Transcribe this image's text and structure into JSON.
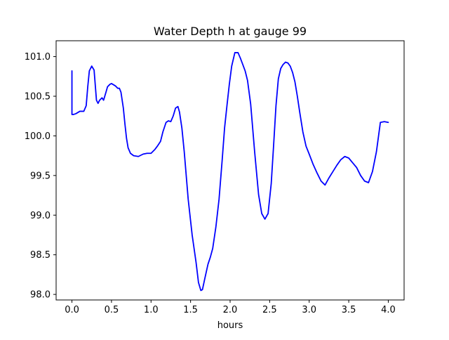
{
  "chart_data": {
    "type": "line",
    "title": "Water Depth h at gauge 99",
    "xlabel": "hours",
    "ylabel": "",
    "xlim": [
      -0.2,
      4.2
    ],
    "ylim": [
      97.93,
      101.2
    ],
    "xticks": [
      0.0,
      0.5,
      1.0,
      1.5,
      2.0,
      2.5,
      3.0,
      3.5,
      4.0
    ],
    "xtick_labels": [
      "0.0",
      "0.5",
      "1.0",
      "1.5",
      "2.0",
      "2.5",
      "3.0",
      "3.5",
      "4.0"
    ],
    "yticks": [
      98.0,
      98.5,
      99.0,
      99.5,
      100.0,
      100.5,
      101.0
    ],
    "ytick_labels": [
      "98.0",
      "98.5",
      "99.0",
      "99.5",
      "100.0",
      "100.5",
      "101.0"
    ],
    "grid": false,
    "series": [
      {
        "color": "#0000ff",
        "x": [
          0.0,
          0.0,
          0.02,
          0.05,
          0.1,
          0.15,
          0.18,
          0.2,
          0.22,
          0.25,
          0.28,
          0.31,
          0.33,
          0.35,
          0.38,
          0.4,
          0.43,
          0.45,
          0.48,
          0.5,
          0.55,
          0.58,
          0.6,
          0.62,
          0.65,
          0.67,
          0.69,
          0.71,
          0.74,
          0.78,
          0.84,
          0.9,
          0.95,
          1.0,
          1.05,
          1.08,
          1.12,
          1.15,
          1.19,
          1.22,
          1.25,
          1.28,
          1.31,
          1.34,
          1.36,
          1.39,
          1.42,
          1.47,
          1.52,
          1.57,
          1.6,
          1.63,
          1.65,
          1.68,
          1.72,
          1.75,
          1.78,
          1.82,
          1.86,
          1.9,
          1.93,
          1.96,
          1.99,
          2.02,
          2.06,
          2.1,
          2.13,
          2.16,
          2.19,
          2.22,
          2.26,
          2.31,
          2.36,
          2.4,
          2.44,
          2.48,
          2.52,
          2.55,
          2.58,
          2.61,
          2.64,
          2.67,
          2.7,
          2.73,
          2.76,
          2.79,
          2.82,
          2.85,
          2.88,
          2.92,
          2.96,
          3.0,
          3.05,
          3.1,
          3.15,
          3.2,
          3.25,
          3.3,
          3.35,
          3.4,
          3.45,
          3.5,
          3.55,
          3.6,
          3.65,
          3.7,
          3.75,
          3.8,
          3.85,
          3.9,
          3.95,
          4.0
        ],
        "values": [
          100.82,
          100.27,
          100.27,
          100.28,
          100.31,
          100.31,
          100.38,
          100.62,
          100.82,
          100.88,
          100.83,
          100.45,
          100.41,
          100.45,
          100.48,
          100.45,
          100.55,
          100.62,
          100.65,
          100.66,
          100.63,
          100.6,
          100.6,
          100.55,
          100.35,
          100.15,
          99.97,
          99.85,
          99.78,
          99.75,
          99.74,
          99.77,
          99.78,
          99.78,
          99.83,
          99.87,
          99.93,
          100.05,
          100.17,
          100.19,
          100.18,
          100.25,
          100.35,
          100.37,
          100.3,
          100.1,
          99.8,
          99.2,
          98.75,
          98.4,
          98.15,
          98.05,
          98.06,
          98.2,
          98.38,
          98.47,
          98.58,
          98.85,
          99.2,
          99.7,
          100.1,
          100.38,
          100.65,
          100.88,
          101.05,
          101.05,
          100.98,
          100.9,
          100.82,
          100.7,
          100.4,
          99.8,
          99.26,
          99.02,
          98.95,
          99.02,
          99.4,
          99.88,
          100.38,
          100.72,
          100.85,
          100.9,
          100.93,
          100.92,
          100.88,
          100.8,
          100.68,
          100.5,
          100.3,
          100.05,
          99.87,
          99.77,
          99.64,
          99.53,
          99.43,
          99.38,
          99.47,
          99.55,
          99.63,
          99.7,
          99.74,
          99.72,
          99.66,
          99.6,
          99.5,
          99.43,
          99.41,
          99.55,
          99.8,
          100.17,
          100.18,
          100.17
        ]
      }
    ]
  }
}
